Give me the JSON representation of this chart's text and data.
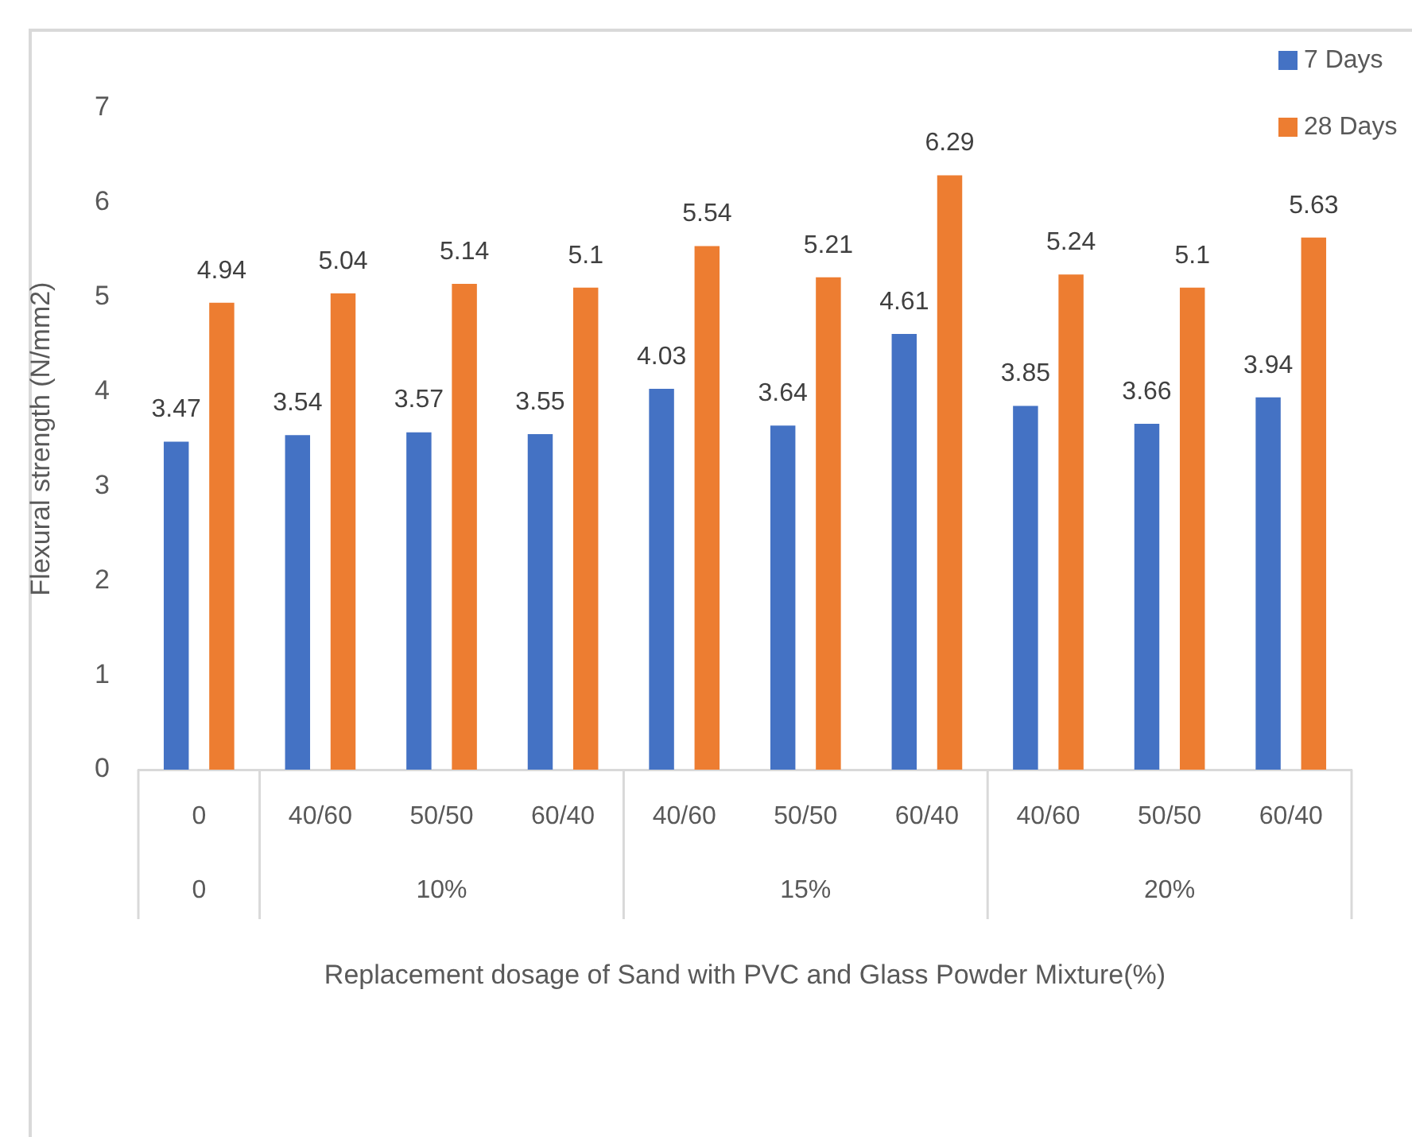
{
  "chart_data": {
    "type": "bar",
    "xlabel": "Replacement dosage of Sand with PVC and Glass Powder Mixture(%)",
    "ylabel": "Flexural strength (N/mm2)",
    "categories": [
      "0",
      "40/60",
      "50/50",
      "60/40",
      "40/60",
      "50/50",
      "60/40",
      "40/60",
      "50/50",
      "60/40"
    ],
    "series": [
      {
        "name": "7 Days",
        "color": "#4472c4",
        "values": [
          3.47,
          3.54,
          3.57,
          3.55,
          4.03,
          3.64,
          4.61,
          3.85,
          3.66,
          3.94
        ]
      },
      {
        "name": "28 Days",
        "color": "#ed7d31",
        "values": [
          4.94,
          5.04,
          5.14,
          5.1,
          5.54,
          5.21,
          6.29,
          5.24,
          5.1,
          5.63
        ]
      }
    ],
    "annotations": [
      "0",
      "10%",
      "15%",
      "20%"
    ],
    "ylim": [
      0,
      7
    ],
    "yticks": [
      0,
      1,
      2,
      3,
      4,
      5,
      6,
      7
    ],
    "grid": false,
    "legend": "top right",
    "data_labels": true
  }
}
